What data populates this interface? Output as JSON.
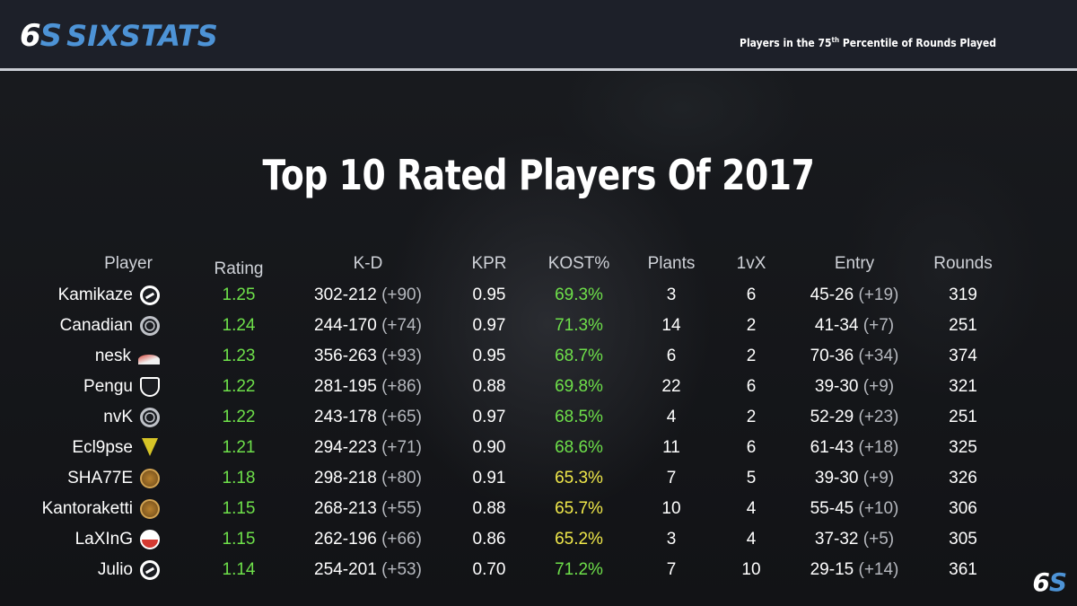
{
  "brand": {
    "mark_left": "6",
    "mark_right": "S",
    "wordmark": "SIXSTATS"
  },
  "header": {
    "subtitle_pre": "Players in the 75",
    "subtitle_sup": "th",
    "subtitle_post": " Percentile of Rounds Played"
  },
  "title": "Top 10 Rated Players Of 2017",
  "columns": {
    "player": "Player",
    "rating": "Rating",
    "kd": "K-D",
    "kpr": "KPR",
    "kost": "KOST%",
    "plants": "Plants",
    "onevx": "1vX",
    "entry": "Entry",
    "rounds": "Rounds"
  },
  "colors": {
    "rating": "#6ee04a",
    "kost_high": "#6ee04a",
    "kost_mid": "#f0e84a",
    "brand_blue": "#4d93d6"
  },
  "players": [
    {
      "name": "Kamikaze",
      "team_icon": "liquid-icon",
      "rating": "1.25",
      "kd": "302-212",
      "kd_diff": "(+90)",
      "kpr": "0.95",
      "kost": "69.3%",
      "kost_tier": "green",
      "plants": "3",
      "onevx": "6",
      "entry": "45-26",
      "entry_diff": "(+19)",
      "rounds": "319"
    },
    {
      "name": "Canadian",
      "team_icon": "ring-icon",
      "rating": "1.24",
      "kd": "244-170",
      "kd_diff": "(+74)",
      "kpr": "0.97",
      "kost": "71.3%",
      "kost_tier": "green",
      "plants": "14",
      "onevx": "2",
      "entry": "41-34",
      "entry_diff": "(+7)",
      "rounds": "251"
    },
    {
      "name": "nesk",
      "team_icon": "wing-icon",
      "rating": "1.23",
      "kd": "356-263",
      "kd_diff": "(+93)",
      "kpr": "0.95",
      "kost": "68.7%",
      "kost_tier": "green",
      "plants": "6",
      "onevx": "2",
      "entry": "70-36",
      "entry_diff": "(+34)",
      "rounds": "374"
    },
    {
      "name": "Pengu",
      "team_icon": "shield-icon",
      "rating": "1.22",
      "kd": "281-195",
      "kd_diff": "(+86)",
      "kpr": "0.88",
      "kost": "69.8%",
      "kost_tier": "green",
      "plants": "22",
      "onevx": "6",
      "entry": "39-30",
      "entry_diff": "(+9)",
      "rounds": "321"
    },
    {
      "name": "nvK",
      "team_icon": "ring-icon",
      "rating": "1.22",
      "kd": "243-178",
      "kd_diff": "(+65)",
      "kpr": "0.97",
      "kost": "68.5%",
      "kost_tier": "green",
      "plants": "4",
      "onevx": "2",
      "entry": "52-29",
      "entry_diff": "(+23)",
      "rounds": "251"
    },
    {
      "name": "Ecl9pse",
      "team_icon": "v-icon",
      "rating": "1.21",
      "kd": "294-223",
      "kd_diff": "(+71)",
      "kpr": "0.90",
      "kost": "68.6%",
      "kost_tier": "green",
      "plants": "11",
      "onevx": "6",
      "entry": "61-43",
      "entry_diff": "(+18)",
      "rounds": "325"
    },
    {
      "name": "SHA77E",
      "team_icon": "ence-icon",
      "rating": "1.18",
      "kd": "298-218",
      "kd_diff": "(+80)",
      "kpr": "0.91",
      "kost": "65.3%",
      "kost_tier": "yellow",
      "plants": "7",
      "onevx": "5",
      "entry": "39-30",
      "entry_diff": "(+9)",
      "rounds": "326"
    },
    {
      "name": "Kantoraketti",
      "team_icon": "ence-icon",
      "rating": "1.15",
      "kd": "268-213",
      "kd_diff": "(+55)",
      "kpr": "0.88",
      "kost": "65.7%",
      "kost_tier": "yellow",
      "plants": "10",
      "onevx": "4",
      "entry": "55-45",
      "entry_diff": "(+10)",
      "rounds": "306"
    },
    {
      "name": "LaXInG",
      "team_icon": "peak-icon",
      "rating": "1.15",
      "kd": "262-196",
      "kd_diff": "(+66)",
      "kpr": "0.86",
      "kost": "65.2%",
      "kost_tier": "yellow",
      "plants": "3",
      "onevx": "4",
      "entry": "37-32",
      "entry_diff": "(+5)",
      "rounds": "305"
    },
    {
      "name": "Julio",
      "team_icon": "liquid-icon",
      "rating": "1.14",
      "kd": "254-201",
      "kd_diff": "(+53)",
      "kpr": "0.70",
      "kost": "71.2%",
      "kost_tier": "green",
      "plants": "7",
      "onevx": "10",
      "entry": "29-15",
      "entry_diff": "(+14)",
      "rounds": "361"
    }
  ]
}
